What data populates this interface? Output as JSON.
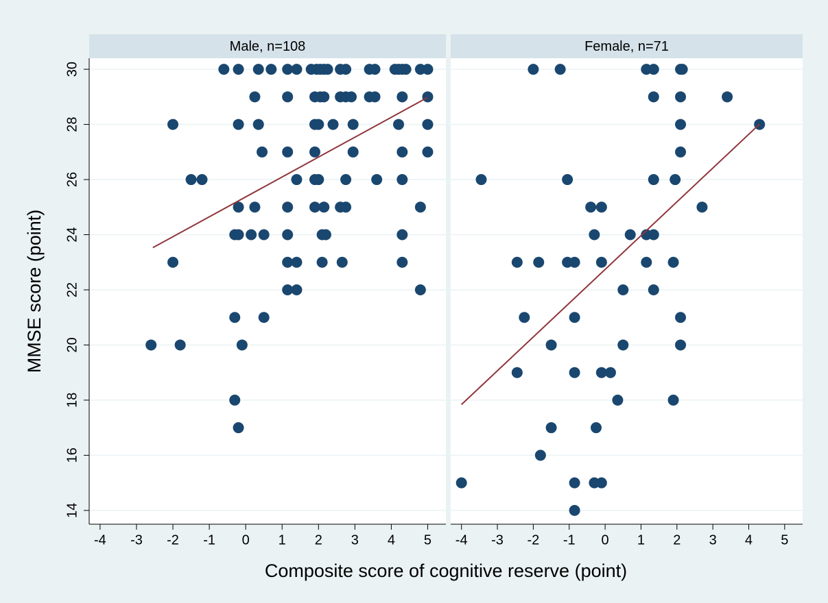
{
  "axis_labels": {
    "x": "Composite score of cognitive reserve (point)",
    "y": "MMSE score (point)"
  },
  "chart_data": [
    {
      "type": "scatter",
      "title": "Male, n=108",
      "xlim": [
        -4.3,
        5.5
      ],
      "xticks": [
        -4,
        -3,
        -2,
        -1,
        0,
        1,
        2,
        3,
        4,
        5
      ],
      "ylim": [
        13.5,
        30.4
      ],
      "yticks": [
        14,
        16,
        18,
        20,
        22,
        24,
        26,
        28,
        30
      ],
      "grid": true,
      "points": {
        "color": "#1a476f",
        "x": [
          -0.6,
          -0.2,
          0.35,
          0.7,
          1.15,
          1.4,
          1.8,
          1.95,
          2.05,
          2.15,
          2.25,
          2.6,
          2.75,
          3.4,
          3.55,
          4.1,
          4.2,
          4.3,
          4.4,
          4.8,
          5.0,
          0.25,
          1.15,
          1.9,
          2.05,
          2.15,
          2.6,
          2.75,
          2.9,
          3.4,
          3.55,
          4.3,
          5.0,
          -2.0,
          -0.2,
          0.35,
          1.9,
          2.0,
          2.4,
          2.95,
          4.2,
          5.0,
          0.45,
          1.15,
          1.9,
          2.95,
          4.3,
          5.0,
          -1.5,
          -1.2,
          1.4,
          1.9,
          2.0,
          2.75,
          3.6,
          4.3,
          -0.2,
          0.25,
          1.15,
          1.9,
          2.15,
          2.6,
          2.75,
          4.8,
          -0.3,
          -0.2,
          0.15,
          0.5,
          1.15,
          2.1,
          2.2,
          4.3,
          -2.0,
          1.15,
          1.4,
          2.1,
          2.65,
          4.3,
          1.15,
          1.4,
          4.8,
          -0.3,
          0.5,
          -2.6,
          -1.8,
          -0.1,
          -0.3,
          -0.2
        ],
        "y": [
          30,
          30,
          30,
          30,
          30,
          30,
          30,
          30,
          30,
          30,
          30,
          30,
          30,
          30,
          30,
          30,
          30,
          30,
          30,
          30,
          30,
          29,
          29,
          29,
          29,
          29,
          29,
          29,
          29,
          29,
          29,
          29,
          29,
          28,
          28,
          28,
          28,
          28,
          28,
          28,
          28,
          28,
          27,
          27,
          27,
          27,
          27,
          27,
          26,
          26,
          26,
          26,
          26,
          26,
          26,
          26,
          25,
          25,
          25,
          25,
          25,
          25,
          25,
          25,
          24,
          24,
          24,
          24,
          24,
          24,
          24,
          24,
          23,
          23,
          23,
          23,
          23,
          23,
          22,
          22,
          22,
          21,
          21,
          20,
          20,
          20,
          18,
          17
        ]
      },
      "fit": {
        "color": "#90353b",
        "x": [
          -2.55,
          5.0
        ],
        "y": [
          23.53,
          28.98
        ]
      }
    },
    {
      "type": "scatter",
      "title": "Female, n=71",
      "xlim": [
        -4.3,
        5.5
      ],
      "xticks": [
        -4,
        -3,
        -2,
        -1,
        0,
        1,
        2,
        3,
        4,
        5
      ],
      "ylim": [
        13.5,
        30.4
      ],
      "yticks": [
        14,
        16,
        18,
        20,
        22,
        24,
        26,
        28,
        30
      ],
      "grid": true,
      "points": {
        "color": "#1a476f",
        "x": [
          -2.0,
          -1.25,
          1.15,
          1.35,
          2.1,
          2.15,
          1.35,
          2.1,
          3.4,
          2.1,
          4.3,
          2.1,
          -3.45,
          -1.05,
          1.35,
          1.95,
          -0.4,
          -0.1,
          2.7,
          -0.3,
          0.7,
          1.15,
          1.35,
          -2.45,
          -1.85,
          -1.05,
          -0.85,
          -0.1,
          1.15,
          1.9,
          0.5,
          1.35,
          -2.25,
          -0.85,
          2.1,
          -1.5,
          0.5,
          2.1,
          -2.45,
          -0.85,
          -0.1,
          0.15,
          0.35,
          1.9,
          -1.5,
          -0.25,
          -1.8,
          -4.0,
          -0.85,
          -0.3,
          -0.1,
          -0.85
        ],
        "y": [
          30,
          30,
          30,
          30,
          30,
          30,
          29,
          29,
          29,
          28,
          28,
          27,
          26,
          26,
          26,
          26,
          25,
          25,
          25,
          24,
          24,
          24,
          24,
          23,
          23,
          23,
          23,
          23,
          23,
          23,
          22,
          22,
          21,
          21,
          21,
          20,
          20,
          20,
          19,
          19,
          19,
          19,
          18,
          18,
          17,
          17,
          16,
          15,
          15,
          15,
          15,
          14
        ]
      },
      "fit": {
        "color": "#90353b",
        "x": [
          -4.0,
          4.3
        ],
        "y": [
          17.84,
          28.01
        ]
      }
    }
  ]
}
